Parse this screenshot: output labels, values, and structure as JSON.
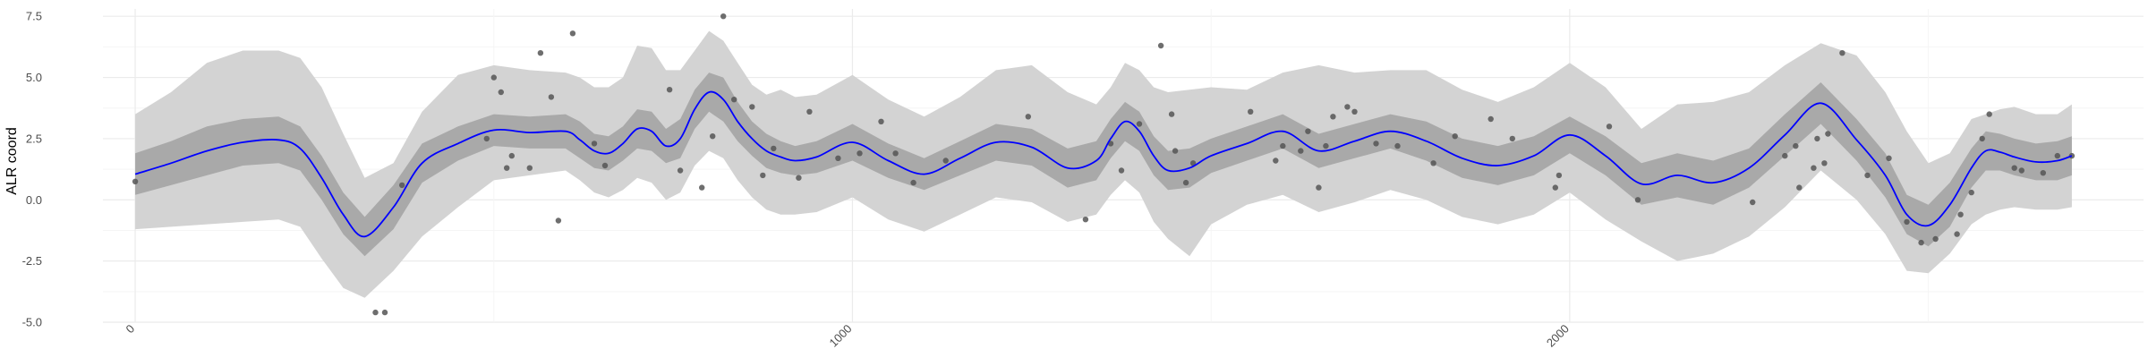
{
  "chart_data": {
    "type": "line",
    "title": "",
    "xlabel": "",
    "ylabel": "ALR coord",
    "xlim": [
      -45,
      2800
    ],
    "ylim": [
      -5.0,
      7.8
    ],
    "x_ticks": [
      0,
      1000,
      2000
    ],
    "x_tick_labels": [
      "0",
      "1000",
      "2000"
    ],
    "y_ticks": [
      -5.0,
      -2.5,
      0.0,
      2.5,
      5.0,
      7.5
    ],
    "y_tick_labels": [
      "-5.0",
      "-2.5",
      "0.0",
      "2.5",
      "5.0",
      "7.5"
    ],
    "grid": true,
    "colors": {
      "mean_line": "#0000ff",
      "inner_band": "#a9a9a9",
      "outer_band": "#d3d3d3",
      "points": "#555555",
      "grid_major": "#ebebeb",
      "grid_minor": "#f5f5f5"
    },
    "series": [
      {
        "type": "line",
        "x": [
          0,
          50,
          100,
          150,
          200,
          230,
          260,
          290,
          320,
          360,
          400,
          450,
          500,
          550,
          600,
          620,
          640,
          660,
          680,
          700,
          720,
          740,
          760,
          780,
          800,
          820,
          840,
          860,
          880,
          900,
          920,
          950,
          1000,
          1050,
          1100,
          1150,
          1200,
          1250,
          1300,
          1340,
          1360,
          1380,
          1400,
          1420,
          1440,
          1470,
          1500,
          1550,
          1600,
          1650,
          1700,
          1750,
          1800,
          1850,
          1900,
          1950,
          2000,
          2050,
          2100,
          2150,
          2200,
          2250,
          2300,
          2350,
          2400,
          2440,
          2470,
          2500,
          2530,
          2560,
          2580,
          2600,
          2620,
          2650,
          2680,
          2700
        ],
        "y": [
          1.05,
          1.5,
          2.0,
          2.35,
          2.45,
          2.1,
          0.9,
          -0.6,
          -1.5,
          -0.3,
          1.5,
          2.3,
          2.85,
          2.75,
          2.8,
          2.45,
          2.0,
          1.9,
          2.3,
          2.9,
          2.8,
          2.2,
          2.5,
          3.7,
          4.4,
          4.1,
          3.2,
          2.5,
          2.0,
          1.75,
          1.6,
          1.75,
          2.35,
          1.6,
          1.05,
          1.7,
          2.35,
          2.15,
          1.3,
          1.6,
          2.5,
          3.2,
          2.8,
          1.8,
          1.2,
          1.3,
          1.8,
          2.3,
          2.8,
          2.0,
          2.4,
          2.8,
          2.4,
          1.7,
          1.4,
          1.8,
          2.65,
          1.8,
          0.65,
          1.0,
          0.7,
          1.3,
          2.65,
          3.95,
          2.45,
          1.0,
          -0.6,
          -1.05,
          -0.2,
          1.3,
          2.0,
          1.95,
          1.75,
          1.55,
          1.6,
          1.8
        ]
      },
      {
        "type": "band",
        "name": "inner",
        "x": [
          0,
          50,
          100,
          150,
          200,
          230,
          260,
          290,
          320,
          360,
          400,
          450,
          500,
          550,
          600,
          620,
          640,
          660,
          680,
          700,
          720,
          740,
          760,
          780,
          800,
          820,
          840,
          860,
          880,
          900,
          920,
          950,
          1000,
          1050,
          1100,
          1150,
          1200,
          1250,
          1300,
          1340,
          1360,
          1380,
          1400,
          1420,
          1440,
          1470,
          1500,
          1550,
          1600,
          1650,
          1700,
          1750,
          1800,
          1850,
          1900,
          1950,
          2000,
          2050,
          2100,
          2150,
          2200,
          2250,
          2300,
          2350,
          2400,
          2440,
          2470,
          2500,
          2530,
          2560,
          2580,
          2600,
          2620,
          2650,
          2680,
          2700
        ],
        "lower": [
          0.2,
          0.6,
          1.0,
          1.4,
          1.5,
          1.2,
          0.0,
          -1.4,
          -2.3,
          -1.2,
          0.7,
          1.6,
          2.2,
          2.1,
          2.1,
          1.7,
          1.3,
          1.2,
          1.6,
          2.1,
          2.0,
          1.5,
          1.7,
          2.9,
          3.6,
          3.2,
          2.4,
          1.8,
          1.3,
          1.1,
          1.0,
          1.1,
          1.6,
          0.9,
          0.4,
          1.0,
          1.6,
          1.4,
          0.5,
          0.8,
          1.7,
          2.4,
          2.0,
          1.0,
          0.4,
          0.5,
          1.1,
          1.6,
          2.1,
          1.3,
          1.7,
          2.1,
          1.6,
          0.9,
          0.6,
          1.0,
          1.9,
          1.0,
          -0.2,
          0.1,
          -0.2,
          0.5,
          1.8,
          3.1,
          1.6,
          0.1,
          -1.4,
          -1.9,
          -1.1,
          0.5,
          1.2,
          1.2,
          1.0,
          0.8,
          0.8,
          1.0
        ],
        "upper": [
          1.9,
          2.4,
          3.0,
          3.3,
          3.4,
          3.0,
          1.8,
          0.3,
          -0.7,
          0.6,
          2.3,
          3.0,
          3.5,
          3.4,
          3.5,
          3.2,
          2.7,
          2.6,
          3.0,
          3.7,
          3.6,
          2.9,
          3.3,
          4.5,
          5.2,
          5.0,
          4.0,
          3.2,
          2.7,
          2.4,
          2.2,
          2.4,
          3.1,
          2.3,
          1.7,
          2.4,
          3.1,
          2.9,
          2.1,
          2.4,
          3.3,
          4.0,
          3.6,
          2.6,
          2.0,
          2.1,
          2.5,
          3.0,
          3.5,
          2.7,
          3.1,
          3.5,
          3.2,
          2.5,
          2.2,
          2.6,
          3.4,
          2.6,
          1.5,
          1.9,
          1.6,
          2.1,
          3.5,
          4.8,
          3.3,
          1.9,
          0.2,
          -0.2,
          0.7,
          2.1,
          2.8,
          2.7,
          2.5,
          2.3,
          2.4,
          2.6
        ]
      },
      {
        "type": "band",
        "name": "outer",
        "x": [
          0,
          50,
          100,
          150,
          200,
          230,
          260,
          290,
          320,
          360,
          400,
          450,
          500,
          550,
          600,
          620,
          640,
          660,
          680,
          700,
          720,
          740,
          760,
          780,
          800,
          820,
          840,
          860,
          880,
          900,
          920,
          950,
          1000,
          1050,
          1100,
          1150,
          1200,
          1250,
          1300,
          1340,
          1360,
          1380,
          1400,
          1420,
          1440,
          1470,
          1500,
          1550,
          1600,
          1650,
          1700,
          1750,
          1800,
          1850,
          1900,
          1950,
          2000,
          2050,
          2100,
          2150,
          2200,
          2250,
          2300,
          2350,
          2400,
          2440,
          2470,
          2500,
          2530,
          2560,
          2580,
          2600,
          2620,
          2650,
          2680,
          2700
        ],
        "lower": [
          -1.2,
          -1.1,
          -1.0,
          -0.9,
          -0.8,
          -1.1,
          -2.4,
          -3.6,
          -4.0,
          -2.9,
          -1.5,
          -0.3,
          0.8,
          1.0,
          1.2,
          0.8,
          0.3,
          0.1,
          0.4,
          0.9,
          0.7,
          0.0,
          0.3,
          1.4,
          2.0,
          1.7,
          0.8,
          0.1,
          -0.4,
          -0.6,
          -0.6,
          -0.5,
          0.1,
          -0.8,
          -1.3,
          -0.6,
          0.1,
          -0.1,
          -0.9,
          -0.6,
          0.2,
          0.8,
          0.3,
          -0.9,
          -1.6,
          -2.3,
          -1.0,
          -0.2,
          0.2,
          -0.5,
          -0.1,
          0.4,
          0.0,
          -0.7,
          -1.0,
          -0.6,
          0.3,
          -0.8,
          -1.7,
          -2.5,
          -2.2,
          -1.5,
          -0.3,
          1.2,
          0.0,
          -1.4,
          -2.9,
          -3.0,
          -2.2,
          -1.0,
          -0.6,
          -0.4,
          -0.3,
          -0.4,
          -0.4,
          -0.3
        ],
        "upper": [
          3.5,
          4.4,
          5.6,
          6.1,
          6.1,
          5.8,
          4.6,
          2.7,
          0.9,
          1.5,
          3.6,
          5.1,
          5.5,
          5.3,
          5.2,
          5.0,
          4.6,
          4.6,
          5.0,
          6.3,
          6.2,
          5.3,
          5.3,
          6.1,
          6.9,
          6.5,
          5.6,
          4.7,
          4.3,
          4.5,
          4.2,
          4.3,
          5.1,
          4.1,
          3.4,
          4.2,
          5.3,
          5.5,
          4.4,
          3.9,
          4.6,
          5.6,
          5.3,
          4.6,
          4.4,
          4.5,
          4.6,
          4.5,
          5.2,
          5.5,
          5.2,
          5.3,
          5.3,
          4.5,
          4.0,
          4.6,
          5.6,
          4.6,
          2.9,
          3.9,
          4.0,
          4.4,
          5.5,
          6.4,
          5.9,
          4.4,
          2.8,
          1.5,
          1.9,
          3.3,
          3.5,
          3.7,
          3.8,
          3.5,
          3.5,
          3.9
        ]
      },
      {
        "type": "scatter",
        "x": [
          0,
          335,
          348,
          372,
          490,
          500,
          510,
          518,
          525,
          550,
          565,
          580,
          590,
          610,
          640,
          655,
          745,
          760,
          790,
          805,
          820,
          835,
          860,
          875,
          890,
          925,
          940,
          980,
          1010,
          1040,
          1060,
          1085,
          1130,
          1245,
          1325,
          1360,
          1375,
          1400,
          1430,
          1445,
          1450,
          1465,
          1475,
          1555,
          1590,
          1600,
          1625,
          1635,
          1650,
          1660,
          1670,
          1690,
          1700,
          1730,
          1760,
          1810,
          1840,
          1890,
          1920,
          1980,
          1985,
          2055,
          2095,
          2255,
          2300,
          2315,
          2320,
          2340,
          2345,
          2355,
          2360,
          2380,
          2415,
          2445,
          2470,
          2490,
          2510,
          2540,
          2545,
          2560,
          2575,
          2585,
          2620,
          2630,
          2660,
          2680,
          2700
        ],
        "y": [
          0.75,
          -4.6,
          -4.6,
          0.6,
          2.5,
          5.0,
          4.4,
          1.3,
          1.8,
          1.3,
          6.0,
          4.2,
          -0.85,
          6.8,
          2.3,
          1.4,
          4.5,
          1.2,
          0.5,
          2.6,
          7.5,
          4.1,
          3.8,
          1.0,
          2.1,
          0.9,
          3.6,
          1.7,
          1.9,
          3.2,
          1.9,
          0.7,
          1.6,
          3.4,
          -0.8,
          2.3,
          1.2,
          3.1,
          6.3,
          3.5,
          2.0,
          0.7,
          1.5,
          3.6,
          1.6,
          2.2,
          2.0,
          2.8,
          0.5,
          2.2,
          3.4,
          3.8,
          3.6,
          2.3,
          2.2,
          1.5,
          2.6,
          3.3,
          2.5,
          0.5,
          1.0,
          3.0,
          0.0,
          -0.1,
          1.8,
          2.2,
          0.5,
          1.3,
          2.5,
          1.5,
          2.7,
          6.0,
          1.0,
          1.7,
          -0.9,
          -1.75,
          -1.6,
          -1.4,
          -0.6,
          0.3,
          2.5,
          3.5,
          1.3,
          1.2,
          1.1,
          1.8,
          1.8
        ]
      }
    ]
  }
}
